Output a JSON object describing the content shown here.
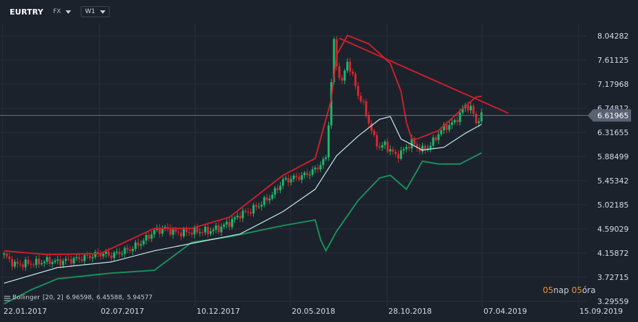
{
  "toolbar": {
    "symbol": "EURTRY",
    "type_label": "FX",
    "interval_label": "W1"
  },
  "legend": {
    "name": "Bollinger",
    "params": "[20, 2]",
    "values": [
      "6.96598,",
      "6.45588,",
      "5.94577"
    ]
  },
  "countdown": {
    "days": "05",
    "days_unit": "nap",
    "hours": "05",
    "hours_unit": "óra"
  },
  "colors": {
    "background": "#1c222c",
    "up": "#1db86a",
    "down": "#d8262c",
    "middle_band": "#c7eef2",
    "upper_band": "#cc1f2a",
    "lower_band": "#19905a",
    "trendline": "#cc1f2a",
    "price_badge": "#596273",
    "countdown": "#e8902b"
  },
  "chart_data": {
    "type": "candlestick",
    "symbol": "EURTRY",
    "interval": "W1",
    "y_ticks": [
      "8.04282",
      "7.61125",
      "7.17968",
      "6.74812",
      "6.31655",
      "5.88499",
      "5.45342",
      "5.02185",
      "4.59029",
      "4.15872",
      "3.72715",
      "3.29559"
    ],
    "x_ticks": [
      "22.01.2017",
      "02.07.2017",
      "10.12.2017",
      "20.05.2018",
      "28.10.2018",
      "07.04.2019",
      "15.09.2019"
    ],
    "ylim": [
      3.29559,
      8.04282
    ],
    "last_price": "6.61965",
    "close_path": [
      [
        0,
        4.12
      ],
      [
        4,
        3.95
      ],
      [
        8,
        3.97
      ],
      [
        12,
        3.98
      ],
      [
        16,
        4.02
      ],
      [
        20,
        4.0
      ],
      [
        24,
        4.03
      ],
      [
        28,
        4.06
      ],
      [
        32,
        4.1
      ],
      [
        36,
        4.15
      ],
      [
        40,
        4.12
      ],
      [
        44,
        4.18
      ],
      [
        48,
        4.25
      ],
      [
        52,
        4.38
      ],
      [
        56,
        4.55
      ],
      [
        60,
        4.6
      ],
      [
        64,
        4.52
      ],
      [
        68,
        4.53
      ],
      [
        72,
        4.55
      ],
      [
        76,
        4.55
      ],
      [
        80,
        4.6
      ],
      [
        84,
        4.7
      ],
      [
        88,
        4.85
      ],
      [
        92,
        4.92
      ],
      [
        96,
        5.05
      ],
      [
        100,
        5.2
      ],
      [
        104,
        5.45
      ],
      [
        108,
        5.5
      ],
      [
        112,
        5.55
      ],
      [
        116,
        5.65
      ],
      [
        118,
        5.75
      ],
      [
        120,
        5.85
      ],
      [
        121,
        6.5
      ],
      [
        122,
        7.2
      ],
      [
        123,
        7.95
      ],
      [
        124,
        7.5
      ],
      [
        126,
        7.2
      ],
      [
        128,
        7.6
      ],
      [
        130,
        7.3
      ],
      [
        132,
        7.0
      ],
      [
        134,
        6.8
      ],
      [
        136,
        6.5
      ],
      [
        138,
        6.2
      ],
      [
        140,
        6.05
      ],
      [
        142,
        6.1
      ],
      [
        144,
        6.0
      ],
      [
        146,
        5.9
      ],
      [
        148,
        5.95
      ],
      [
        150,
        6.05
      ],
      [
        152,
        6.15
      ],
      [
        154,
        6.05
      ],
      [
        156,
        6.0
      ],
      [
        158,
        6.05
      ],
      [
        160,
        6.15
      ],
      [
        162,
        6.3
      ],
      [
        164,
        6.4
      ],
      [
        166,
        6.45
      ],
      [
        168,
        6.5
      ],
      [
        170,
        6.65
      ],
      [
        172,
        6.8
      ],
      [
        174,
        6.75
      ],
      [
        176,
        6.5
      ],
      [
        178,
        6.62
      ]
    ],
    "bollinger": {
      "period": 20,
      "stddev": 2,
      "upper": [
        [
          0,
          4.2
        ],
        [
          16,
          4.13
        ],
        [
          36,
          4.15
        ],
        [
          56,
          4.6
        ],
        [
          70,
          4.6
        ],
        [
          84,
          4.8
        ],
        [
          104,
          5.55
        ],
        [
          116,
          5.85
        ],
        [
          122,
          6.9
        ],
        [
          124,
          7.7
        ],
        [
          128,
          8.05
        ],
        [
          136,
          7.9
        ],
        [
          144,
          7.55
        ],
        [
          148,
          7.05
        ],
        [
          150,
          6.5
        ],
        [
          152,
          6.2
        ],
        [
          154,
          6.2
        ],
        [
          162,
          6.35
        ],
        [
          170,
          6.7
        ],
        [
          176,
          6.95
        ],
        [
          178,
          6.96
        ]
      ],
      "middle": [
        [
          0,
          3.62
        ],
        [
          20,
          3.9
        ],
        [
          40,
          4.0
        ],
        [
          56,
          4.2
        ],
        [
          72,
          4.35
        ],
        [
          88,
          4.5
        ],
        [
          104,
          4.9
        ],
        [
          116,
          5.3
        ],
        [
          124,
          5.9
        ],
        [
          132,
          6.25
        ],
        [
          140,
          6.55
        ],
        [
          144,
          6.6
        ],
        [
          148,
          6.2
        ],
        [
          156,
          6.0
        ],
        [
          164,
          6.05
        ],
        [
          172,
          6.3
        ],
        [
          178,
          6.46
        ]
      ],
      "lower": [
        [
          0,
          3.25
        ],
        [
          10,
          3.5
        ],
        [
          20,
          3.7
        ],
        [
          40,
          3.8
        ],
        [
          56,
          3.85
        ],
        [
          70,
          4.35
        ],
        [
          84,
          4.45
        ],
        [
          104,
          4.65
        ],
        [
          116,
          4.75
        ],
        [
          118,
          4.4
        ],
        [
          120,
          4.2
        ],
        [
          124,
          4.55
        ],
        [
          132,
          5.1
        ],
        [
          140,
          5.5
        ],
        [
          144,
          5.55
        ],
        [
          150,
          5.3
        ],
        [
          156,
          5.8
        ],
        [
          162,
          5.75
        ],
        [
          170,
          5.75
        ],
        [
          178,
          5.95
        ]
      ]
    },
    "trendline": {
      "from": [
        125,
        8.0
      ],
      "to": [
        188,
        6.66
      ]
    }
  }
}
